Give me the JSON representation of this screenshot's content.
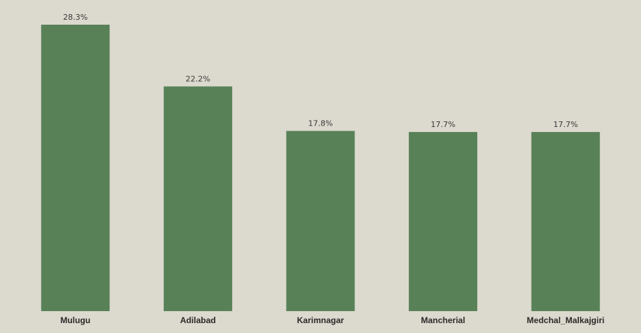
{
  "chart_data": {
    "type": "bar",
    "categories": [
      "Mulugu",
      "Adilabad",
      "Karimnagar",
      "Mancherial",
      "Medchal_Malkajgiri"
    ],
    "values": [
      28.3,
      22.2,
      17.8,
      17.7,
      17.7
    ],
    "value_labels": [
      "28.3%",
      "22.2%",
      "17.8%",
      "17.7%",
      "17.7%"
    ],
    "ylim": [
      0,
      28.3
    ],
    "title": "",
    "xlabel": "",
    "ylabel": "",
    "grid": false,
    "bar_color": "#588158",
    "background_color": "#dcd9ce"
  }
}
